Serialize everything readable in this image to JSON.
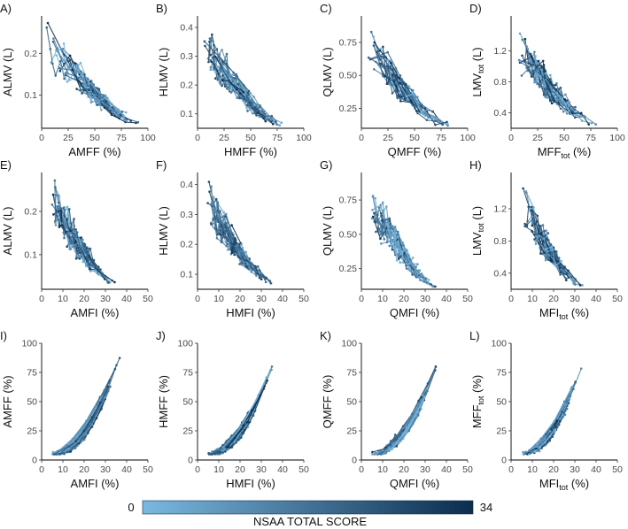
{
  "chart_data": {
    "type": "line",
    "colorbar": {
      "title": "NSAA TOTAL SCORE",
      "min": "0",
      "max": "34",
      "low_color": "#7bb8df",
      "high_color": "#0b2d4e"
    },
    "panels": [
      {
        "label": "A)",
        "xlabel": "AMFF (%)",
        "ylabel": "ALMV (L)",
        "xlim": [
          0,
          100
        ],
        "ylim": [
          0.02,
          0.29
        ],
        "xticks": [
          "0",
          "25",
          "50",
          "75",
          "100"
        ],
        "xtick_vals": [
          0,
          25,
          50,
          75,
          100
        ],
        "yticks": [
          "0.1",
          "0.2"
        ],
        "ytick_vals": [
          0.1,
          0.2
        ],
        "shape": "decay",
        "xr": [
          6,
          92
        ],
        "yr": [
          0.03,
          0.28
        ]
      },
      {
        "label": "B)",
        "xlabel": "HMFF (%)",
        "ylabel": "HLMV (L)",
        "xlim": [
          0,
          100
        ],
        "ylim": [
          0.05,
          0.44
        ],
        "xticks": [
          "0",
          "25",
          "50",
          "75",
          "100"
        ],
        "xtick_vals": [
          0,
          25,
          50,
          75,
          100
        ],
        "yticks": [
          "0.1",
          "0.2",
          "0.3",
          "0.4"
        ],
        "ytick_vals": [
          0.1,
          0.2,
          0.3,
          0.4
        ],
        "shape": "decay",
        "xr": [
          5,
          80
        ],
        "yr": [
          0.06,
          0.43
        ]
      },
      {
        "label": "C)",
        "xlabel": "QMFF (%)",
        "ylabel": "QLMV (L)",
        "xlim": [
          0,
          100
        ],
        "ylim": [
          0.1,
          0.95
        ],
        "xticks": [
          "0",
          "25",
          "50",
          "75",
          "100"
        ],
        "xtick_vals": [
          0,
          25,
          50,
          75,
          100
        ],
        "yticks": [
          "0.25",
          "0.50",
          "0.75"
        ],
        "ytick_vals": [
          0.25,
          0.5,
          0.75
        ],
        "shape": "decay",
        "xr": [
          8,
          80
        ],
        "yr": [
          0.12,
          0.9
        ]
      },
      {
        "label": "D)",
        "xlabel": "MFF_tot (%)",
        "ylabel": "LMV_tot (L)",
        "xlim": [
          0,
          100
        ],
        "ylim": [
          0.2,
          1.65
        ],
        "xticks": [
          "0",
          "25",
          "50",
          "75",
          "100"
        ],
        "xtick_vals": [
          0,
          25,
          50,
          75,
          100
        ],
        "yticks": [
          "0.4",
          "0.8",
          "1.2"
        ],
        "ytick_vals": [
          0.4,
          0.8,
          1.2
        ],
        "shape": "decay",
        "xr": [
          8,
          78
        ],
        "yr": [
          0.25,
          1.55
        ]
      },
      {
        "label": "E)",
        "xlabel": "AMFI (%)",
        "ylabel": "ALMV (L)",
        "xlim": [
          0,
          50
        ],
        "ylim": [
          0.02,
          0.29
        ],
        "xticks": [
          "0",
          "10",
          "20",
          "30",
          "40",
          "50"
        ],
        "xtick_vals": [
          0,
          10,
          20,
          30,
          40,
          50
        ],
        "yticks": [
          "0.1",
          "0.2"
        ],
        "ytick_vals": [
          0.1,
          0.2
        ],
        "shape": "decay",
        "xr": [
          5,
          35
        ],
        "yr": [
          0.03,
          0.28
        ]
      },
      {
        "label": "F)",
        "xlabel": "HMFI (%)",
        "ylabel": "HLMV (L)",
        "xlim": [
          0,
          50
        ],
        "ylim": [
          0.05,
          0.44
        ],
        "xticks": [
          "0",
          "10",
          "20",
          "30",
          "40",
          "50"
        ],
        "xtick_vals": [
          0,
          10,
          20,
          30,
          40,
          50
        ],
        "yticks": [
          "0.1",
          "0.2",
          "0.3",
          "0.4"
        ],
        "ytick_vals": [
          0.1,
          0.2,
          0.3,
          0.4
        ],
        "shape": "decay",
        "xr": [
          5,
          35
        ],
        "yr": [
          0.07,
          0.42
        ]
      },
      {
        "label": "G)",
        "xlabel": "QMFI (%)",
        "ylabel": "QLMV (L)",
        "xlim": [
          0,
          50
        ],
        "ylim": [
          0.1,
          0.95
        ],
        "xticks": [
          "0",
          "10",
          "20",
          "30",
          "40",
          "50"
        ],
        "xtick_vals": [
          0,
          10,
          20,
          30,
          40,
          50
        ],
        "yticks": [
          "0.25",
          "0.50",
          "0.75"
        ],
        "ytick_vals": [
          0.25,
          0.5,
          0.75
        ],
        "shape": "decay",
        "xr": [
          5,
          35
        ],
        "yr": [
          0.12,
          0.9
        ]
      },
      {
        "label": "H)",
        "xlabel": "MFI_tot (%)",
        "ylabel": "LMV_tot (L)",
        "xlim": [
          0,
          50
        ],
        "ylim": [
          0.2,
          1.65
        ],
        "xticks": [
          "0",
          "10",
          "20",
          "30",
          "40",
          "50"
        ],
        "xtick_vals": [
          0,
          10,
          20,
          30,
          40,
          50
        ],
        "yticks": [
          "0.4",
          "0.8",
          "1.2"
        ],
        "ytick_vals": [
          0.4,
          0.8,
          1.2
        ],
        "shape": "decay",
        "xr": [
          6,
          33
        ],
        "yr": [
          0.25,
          1.5
        ]
      },
      {
        "label": "I)",
        "xlabel": "AMFI (%)",
        "ylabel": "AMFF (%)",
        "xlim": [
          0,
          50
        ],
        "ylim": [
          0,
          100
        ],
        "xticks": [
          "0",
          "10",
          "20",
          "30",
          "40",
          "50"
        ],
        "xtick_vals": [
          0,
          10,
          20,
          30,
          40,
          50
        ],
        "yticks": [
          "0",
          "25",
          "50",
          "75",
          "100"
        ],
        "ytick_vals": [
          0,
          25,
          50,
          75,
          100
        ],
        "shape": "rise",
        "xr": [
          5,
          37
        ],
        "yr": [
          5,
          90
        ]
      },
      {
        "label": "J)",
        "xlabel": "HMFI (%)",
        "ylabel": "HMFF (%)",
        "xlim": [
          0,
          50
        ],
        "ylim": [
          0,
          100
        ],
        "xticks": [
          "0",
          "10",
          "20",
          "30",
          "40",
          "50"
        ],
        "xtick_vals": [
          0,
          10,
          20,
          30,
          40,
          50
        ],
        "yticks": [
          "0",
          "25",
          "50",
          "75",
          "100"
        ],
        "ytick_vals": [
          0,
          25,
          50,
          75,
          100
        ],
        "shape": "rise",
        "xr": [
          5,
          35
        ],
        "yr": [
          5,
          80
        ]
      },
      {
        "label": "K)",
        "xlabel": "QMFI (%)",
        "ylabel": "QMFF (%)",
        "xlim": [
          0,
          50
        ],
        "ylim": [
          0,
          100
        ],
        "xticks": [
          "0",
          "10",
          "20",
          "30",
          "40",
          "50"
        ],
        "xtick_vals": [
          0,
          10,
          20,
          30,
          40,
          50
        ],
        "yticks": [
          "0",
          "25",
          "50",
          "75",
          "100"
        ],
        "ytick_vals": [
          0,
          25,
          50,
          75,
          100
        ],
        "shape": "rise",
        "xr": [
          5,
          35
        ],
        "yr": [
          5,
          80
        ]
      },
      {
        "label": "L)",
        "xlabel": "MFI_tot (%)",
        "ylabel": "MFF_tot (%)",
        "xlim": [
          0,
          50
        ],
        "ylim": [
          0,
          100
        ],
        "xticks": [
          "0",
          "10",
          "20",
          "30",
          "40",
          "50"
        ],
        "xtick_vals": [
          0,
          10,
          20,
          30,
          40,
          50
        ],
        "yticks": [
          "0",
          "25",
          "50",
          "75",
          "100"
        ],
        "ytick_vals": [
          0,
          25,
          50,
          75,
          100
        ],
        "shape": "rise",
        "xr": [
          5,
          33
        ],
        "yr": [
          5,
          80
        ]
      }
    ]
  }
}
